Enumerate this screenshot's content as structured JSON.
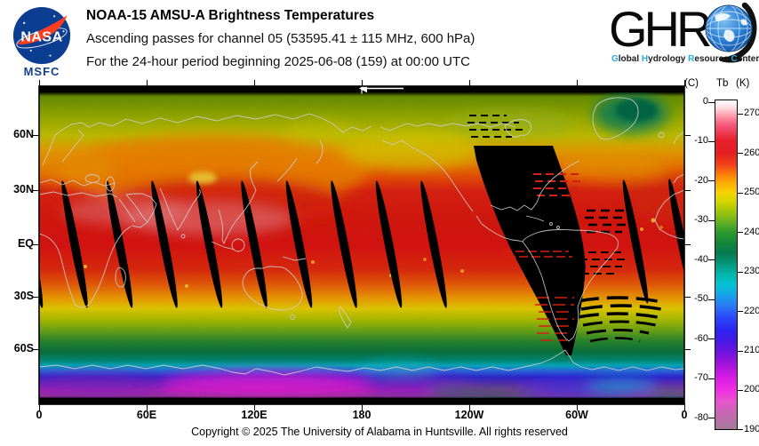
{
  "header": {
    "nasa": {
      "wordmark": "NASA",
      "center": "MSFC"
    },
    "title_line1": "NOAA-15 AMSU-A Brightness Temperatures",
    "title_line2": "Ascending passes for channel 05 (53595.41 ± 115 MHz, 600 hPa)",
    "title_line3": "For the 24-hour period beginning 2025-06-08 (159) at 00:00 UTC",
    "ghrc": {
      "letters": "GHR",
      "subtitle_words": [
        [
          "G",
          "lobal"
        ],
        [
          "H",
          "ydrology"
        ],
        [
          "R",
          "esource"
        ],
        [
          "C",
          "enter"
        ]
      ],
      "accent_color": "#29abe2"
    }
  },
  "map": {
    "lat_ticks": [
      "60N",
      "30N",
      "EQ",
      "30S",
      "60S"
    ],
    "lon_ticks": [
      "0",
      "60E",
      "120E",
      "180",
      "120W",
      "60W",
      "0"
    ],
    "direction_arrow_icon": "←"
  },
  "colorbar": {
    "header_c": "(C)",
    "header_tb": "Tb",
    "header_k": "(K)",
    "celsius_ticks": [
      "0",
      "-10",
      "-20",
      "-30",
      "-40",
      "-50",
      "-60",
      "-70",
      "-80"
    ],
    "kelvin_ticks": [
      "270",
      "260",
      "250",
      "240",
      "230",
      "220",
      "210",
      "200",
      "190"
    ]
  },
  "footer": {
    "copyright": "Copyright © 2025 The University of Alabama in Huntsville.  All rights reserved"
  },
  "chart_data": {
    "type": "heatmap",
    "title": "NOAA-15 AMSU-A Brightness Temperatures",
    "subtitle": "Ascending passes for channel 05 (53595.41 ± 115 MHz, 600 hPa)",
    "period": "For the 24-hour period beginning 2025-06-08 (159) at 00:00 UTC",
    "projection": "equirectangular world map, longitude 0 to 360E left-to-right, latitude 90N top to 90S bottom",
    "x_ticks": [
      "0",
      "60E",
      "120E",
      "180",
      "120W",
      "60W",
      "0"
    ],
    "y_ticks": [
      "60N",
      "30N",
      "EQ",
      "30S",
      "60S"
    ],
    "colorbar": {
      "quantity": "Tb",
      "units": [
        "C",
        "K"
      ],
      "celsius_ticks": [
        0,
        -10,
        -20,
        -30,
        -40,
        -50,
        -60,
        -70,
        -80
      ],
      "kelvin_ticks": [
        270,
        260,
        250,
        240,
        230,
        220,
        210,
        200,
        190
      ],
      "range_kelvin": [
        190,
        273
      ],
      "scale_colors_top_to_bottom": [
        "white",
        "pink",
        "red",
        "orange-red",
        "orange",
        "yellow",
        "yellow-green",
        "green",
        "dark-green",
        "teal",
        "cyan",
        "light-blue",
        "blue",
        "deep-blue",
        "violet",
        "purple",
        "magenta",
        "dusty-purple"
      ]
    },
    "approx_brightness_temp_k": {
      "tropics_25N_to_25S": 261,
      "central_asia_40N_land": 256,
      "60N_band": 248,
      "75N_band": 245,
      "40S_band": 249,
      "55S_band": 241,
      "antarctic_coast_65S": 228,
      "antarctic_interior_75S": 205,
      "antarctic_coldest_80S": 198,
      "greenland": 237
    },
    "no_data_black_regions": [
      "thin black strips along top (~88N-90N) and bottom (~88S-90S) map edges",
      "narrow slanted inter-orbit gores between about 35N and 35S, spaced ~25 degrees of longitude",
      "large unsampled swath over eastern North America, Caribbean and western South America tapering to a point near 40S",
      "scattered dropped scan lines near the swath drawn as short horizontal dashes"
    ],
    "overlay": "light gray coastlines; white westward arrow at top center of map",
    "legend_position": "right vertical colorbar"
  }
}
